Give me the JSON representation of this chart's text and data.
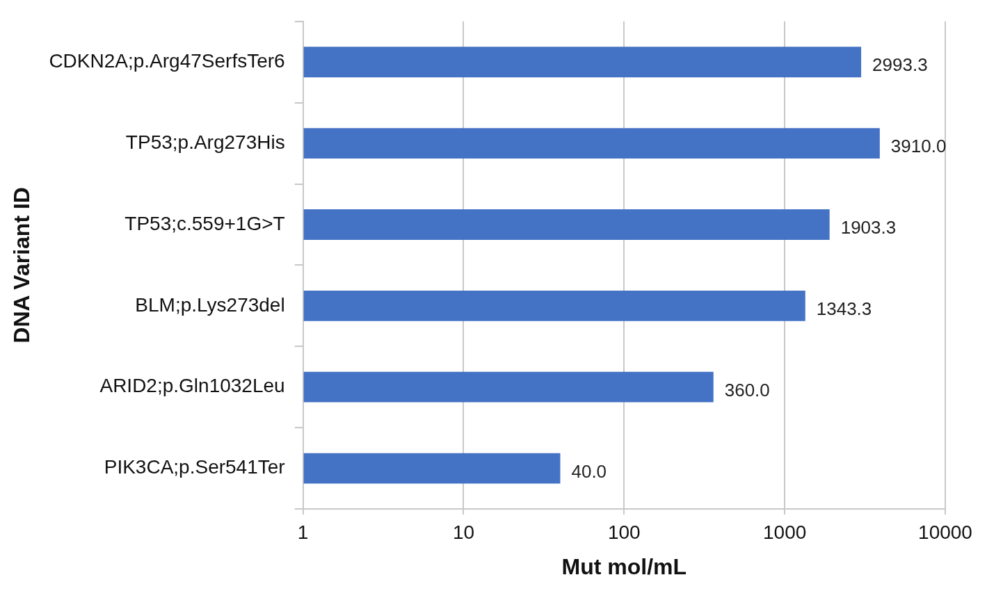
{
  "chart_data": {
    "type": "bar",
    "orientation": "horizontal",
    "xlabel": "Mut mol/mL",
    "ylabel": "DNA Variant ID",
    "categories": [
      "CDKN2A;p.Arg47SerfsTer6",
      "TP53;p.Arg273His",
      "TP53;c.559+1G>T",
      "BLM;p.Lys273del",
      "ARID2;p.Gln1032Leu",
      "PIK3CA;p.Ser541Ter"
    ],
    "values": [
      2993.3,
      3910.0,
      1903.3,
      1343.3,
      360.0,
      40.0
    ],
    "value_labels": [
      "2993.3",
      "3910.0",
      "1903.3",
      "1343.3",
      "360.0",
      "40.0"
    ],
    "color": "#4472c4",
    "log": "x",
    "xlim": [
      1,
      10000
    ],
    "xticks": [
      1,
      10,
      100,
      1000,
      10000
    ],
    "grid": "x",
    "legend": false
  }
}
